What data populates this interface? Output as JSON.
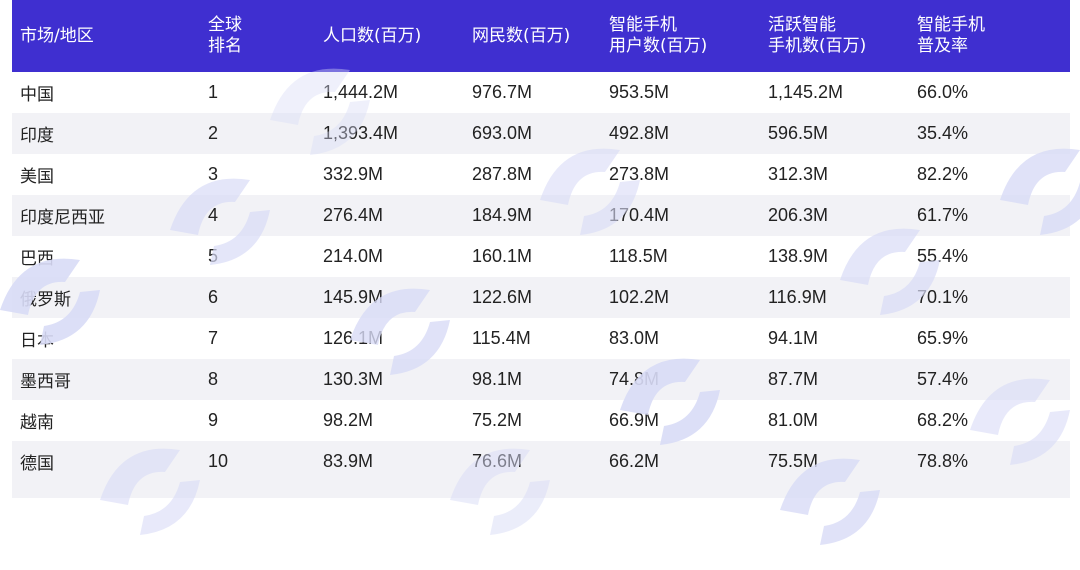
{
  "table": {
    "headers": [
      "市场/地区",
      "全球\n排名",
      "人口数(百万)",
      "网民数(百万)",
      "智能手机\n用户数(百万)",
      "活跃智能\n手机数(百万)",
      "智能手机\n普及率"
    ],
    "rows": [
      [
        "中国",
        "1",
        "1,444.2M",
        "976.7M",
        "953.5M",
        "1,145.2M",
        "66.0%"
      ],
      [
        "印度",
        "2",
        "1,393.4M",
        "693.0M",
        "492.8M",
        "596.5M",
        "35.4%"
      ],
      [
        "美国",
        "3",
        "332.9M",
        "287.8M",
        "273.8M",
        "312.3M",
        "82.2%"
      ],
      [
        "印度尼西亚",
        "4",
        "276.4M",
        "184.9M",
        "170.4M",
        "206.3M",
        "61.7%"
      ],
      [
        "巴西",
        "5",
        "214.0M",
        "160.1M",
        "118.5M",
        "138.9M",
        "55.4%"
      ],
      [
        "俄罗斯",
        "6",
        "145.9M",
        "122.6M",
        "102.2M",
        "116.9M",
        "70.1%"
      ],
      [
        "日本",
        "7",
        "126.1M",
        "115.4M",
        "83.0M",
        "94.1M",
        "65.9%"
      ],
      [
        "墨西哥",
        "8",
        "130.3M",
        "98.1M",
        "74.8M",
        "87.7M",
        "57.4%"
      ],
      [
        "越南",
        "9",
        "98.2M",
        "75.2M",
        "66.9M",
        "81.0M",
        "68.2%"
      ],
      [
        "德国",
        "10",
        "83.9M",
        "76.6M",
        "66.2M",
        "75.5M",
        "78.8%"
      ]
    ]
  },
  "colors": {
    "header_bg": "#3f2fd0",
    "header_text": "#ffffff",
    "stripe": "#f2f2f6",
    "watermark": "#d9dcf7"
  }
}
